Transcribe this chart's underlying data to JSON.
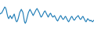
{
  "x": [
    0,
    1,
    2,
    3,
    4,
    5,
    6,
    7,
    8,
    9,
    10,
    11,
    12,
    13,
    14,
    15,
    16,
    17,
    18,
    19,
    20,
    21,
    22,
    23,
    24,
    25,
    26,
    27,
    28,
    29,
    30,
    31,
    32,
    33,
    34,
    35,
    36,
    37,
    38,
    39,
    40,
    41,
    42,
    43,
    44,
    45,
    46,
    47,
    48,
    49,
    50,
    51,
    52,
    53,
    54,
    55,
    56,
    57,
    58,
    59,
    60,
    61,
    62,
    63,
    64,
    65,
    66,
    67,
    68,
    69,
    70,
    71,
    72,
    73,
    74,
    75,
    76,
    77,
    78,
    79,
    80,
    81,
    82,
    83,
    84,
    85,
    86,
    87,
    88,
    89,
    90,
    91,
    92,
    93,
    94,
    95,
    96,
    97,
    98,
    99,
    100,
    101,
    102,
    103,
    104,
    105,
    106,
    107,
    108,
    109,
    110,
    111,
    112,
    113,
    114,
    115,
    116,
    117,
    118,
    119
  ],
  "y": [
    18,
    17,
    17,
    15,
    13,
    11,
    9,
    10,
    13,
    18,
    22,
    24,
    22,
    20,
    22,
    24,
    22,
    20,
    18,
    22,
    26,
    28,
    27,
    24,
    20,
    16,
    14,
    12,
    14,
    16,
    22,
    28,
    30,
    28,
    24,
    20,
    16,
    14,
    12,
    14,
    16,
    18,
    20,
    18,
    16,
    14,
    12,
    11,
    13,
    15,
    17,
    20,
    22,
    21,
    19,
    17,
    15,
    14,
    16,
    18,
    20,
    22,
    20,
    18,
    17,
    19,
    21,
    22,
    21,
    20,
    22,
    24,
    26,
    27,
    25,
    23,
    21,
    20,
    22,
    24,
    25,
    24,
    22,
    21,
    23,
    25,
    27,
    28,
    26,
    24,
    22,
    21,
    23,
    25,
    26,
    25,
    23,
    22,
    21,
    20,
    22,
    24,
    25,
    24,
    22,
    21,
    23,
    25,
    27,
    28,
    26,
    24,
    25,
    26,
    27,
    26,
    27,
    28,
    27,
    26
  ],
  "line_color": "#1a7ab5",
  "background_color": "#ffffff",
  "linewidth": 0.8
}
